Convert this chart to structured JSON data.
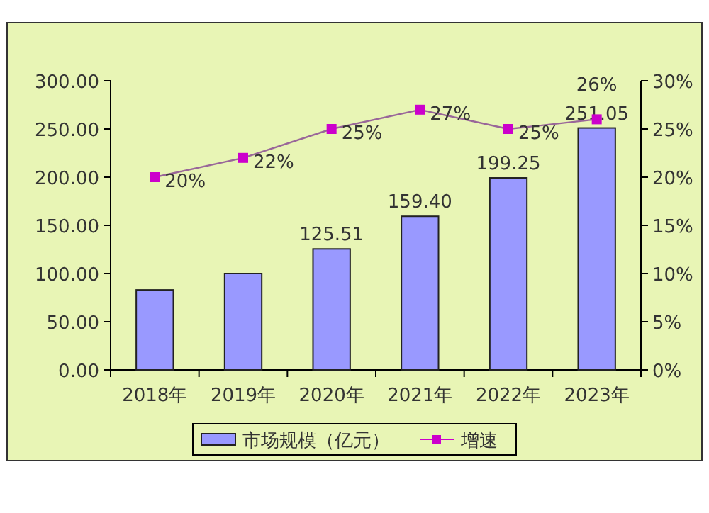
{
  "chart_data": {
    "type": "bar",
    "categories": [
      "2018年",
      "2019年",
      "2020年",
      "2021年",
      "2022年",
      "2023年"
    ],
    "series": [
      {
        "name": "市场规模（亿元）",
        "color": "#9999ff",
        "values": [
          83,
          100,
          125.51,
          159.4,
          199.25,
          251.05
        ],
        "value_labels": [
          null,
          null,
          "125.51",
          "159.40",
          "199.25",
          "251.05"
        ]
      },
      {
        "name": "增速",
        "type": "line",
        "axis": "y2",
        "color": "#cc00cc",
        "values": [
          20,
          22,
          25,
          27,
          25,
          26
        ],
        "value_labels": [
          "20%",
          "22%",
          "25%",
          "27%",
          "25%",
          "26%"
        ]
      }
    ],
    "ylim": [
      0,
      300
    ],
    "yticks": [
      {
        "value": 0,
        "label": "0.00"
      },
      {
        "value": 50,
        "label": "50.00"
      },
      {
        "value": 100,
        "label": "100.00"
      },
      {
        "value": 150,
        "label": "150.00"
      },
      {
        "value": 200,
        "label": "200.00"
      },
      {
        "value": 250,
        "label": "250.00"
      },
      {
        "value": 300,
        "label": "300.00"
      }
    ],
    "y2lim": [
      0,
      30
    ],
    "y2ticks": [
      {
        "value": 0,
        "label": "0%"
      },
      {
        "value": 5,
        "label": "5%"
      },
      {
        "value": 10,
        "label": "10%"
      },
      {
        "value": 15,
        "label": "15%"
      },
      {
        "value": 20,
        "label": "20%"
      },
      {
        "value": 25,
        "label": "25%"
      },
      {
        "value": 30,
        "label": "30%"
      }
    ],
    "marker": "square",
    "legend": "bottom",
    "grid": false
  }
}
